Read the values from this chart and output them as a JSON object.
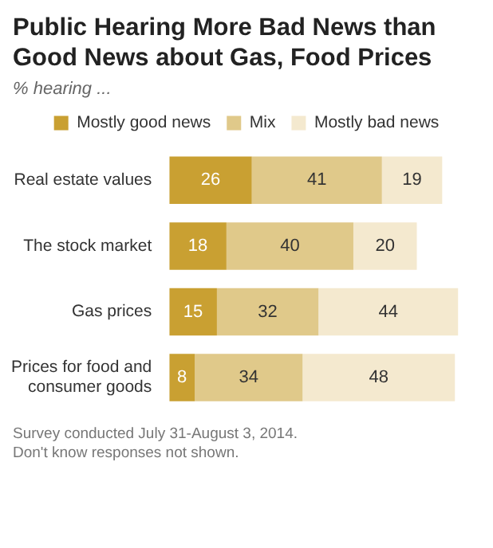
{
  "chart_data": {
    "type": "bar",
    "orientation": "horizontal",
    "stacked": true,
    "title": "Public Hearing More Bad News than Good News about Gas, Food Prices",
    "subtitle": "% hearing ...",
    "categories": [
      "Real estate values",
      "The stock market",
      "Gas prices",
      "Prices for food and consumer goods"
    ],
    "series": [
      {
        "name": "Mostly good news",
        "color": "#c9a032",
        "values": [
          26,
          18,
          15,
          8
        ]
      },
      {
        "name": "Mix",
        "color": "#e0c98a",
        "values": [
          41,
          40,
          32,
          34
        ]
      },
      {
        "name": "Mostly bad news",
        "color": "#f4e9cf",
        "values": [
          19,
          20,
          44,
          48
        ]
      }
    ],
    "tick_labels": "y",
    "legend": "top",
    "data_labels": true,
    "annotations": [
      "Survey conducted July 31-August 3, 2014.",
      "Don't know responses not shown."
    ]
  }
}
